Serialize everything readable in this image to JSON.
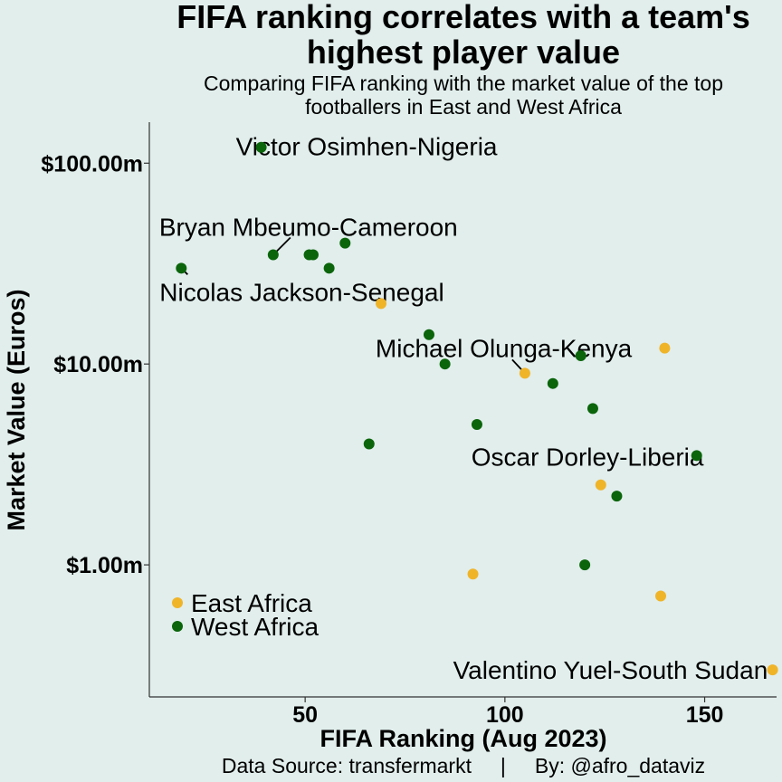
{
  "chart_data": {
    "type": "scatter",
    "title": "FIFA ranking correlates with a team's highest player value",
    "title_lines": [
      "FIFA ranking correlates with a team's",
      "highest player value"
    ],
    "subtitle_lines": [
      "Comparing FIFA ranking with the market value of the top",
      "footballers in East and West Africa"
    ],
    "xlabel": "FIFA Ranking (Aug 2023)",
    "ylabel": "Market Value (Euros)",
    "xlim": [
      11,
      168
    ],
    "ylim": [
      0.22,
      160
    ],
    "yscale": "log",
    "xticks": [
      50,
      100,
      150
    ],
    "xtick_labels": [
      "50",
      "100",
      "150"
    ],
    "yticks": [
      1,
      10,
      100
    ],
    "ytick_labels": [
      "$1.00m",
      "$10.00m",
      "$100.00m"
    ],
    "grid": false,
    "legend_position": "bottom-left",
    "caption": "Data Source: transfermarkt     |     By: @afro_dataviz",
    "series": [
      {
        "name": "East Africa",
        "color": "#f0b429",
        "points": [
          {
            "x": 69,
            "y": 20
          },
          {
            "x": 105,
            "y": 9
          },
          {
            "x": 140,
            "y": 12
          },
          {
            "x": 124,
            "y": 2.5
          },
          {
            "x": 92,
            "y": 0.9
          },
          {
            "x": 139,
            "y": 0.7
          },
          {
            "x": 167,
            "y": 0.3
          }
        ]
      },
      {
        "name": "West Africa",
        "color": "#0b650b",
        "points": [
          {
            "x": 39,
            "y": 120
          },
          {
            "x": 42,
            "y": 35
          },
          {
            "x": 51,
            "y": 35
          },
          {
            "x": 52,
            "y": 35
          },
          {
            "x": 56,
            "y": 30
          },
          {
            "x": 60,
            "y": 40
          },
          {
            "x": 19,
            "y": 30
          },
          {
            "x": 81,
            "y": 14
          },
          {
            "x": 85,
            "y": 10
          },
          {
            "x": 119,
            "y": 11
          },
          {
            "x": 112,
            "y": 8
          },
          {
            "x": 122,
            "y": 6
          },
          {
            "x": 93,
            "y": 5
          },
          {
            "x": 66,
            "y": 4
          },
          {
            "x": 148,
            "y": 3.5
          },
          {
            "x": 128,
            "y": 2.2
          },
          {
            "x": 120,
            "y": 1.0
          }
        ]
      }
    ],
    "annotations": [
      {
        "text": "Victor Osimhen-Nigeria",
        "x": 39,
        "y": 120
      },
      {
        "text": "Bryan Mbeumo-Cameroon",
        "x": 42,
        "y": 35
      },
      {
        "text": "Nicolas Jackson-Senegal",
        "x": 19,
        "y": 30
      },
      {
        "text": "Michael Olunga-Kenya",
        "x": 105,
        "y": 9
      },
      {
        "text": "Oscar Dorley-Liberia",
        "x": 148,
        "y": 3.5
      },
      {
        "text": "Valentino Yuel-South Sudan",
        "x": 167,
        "y": 0.3
      }
    ]
  }
}
